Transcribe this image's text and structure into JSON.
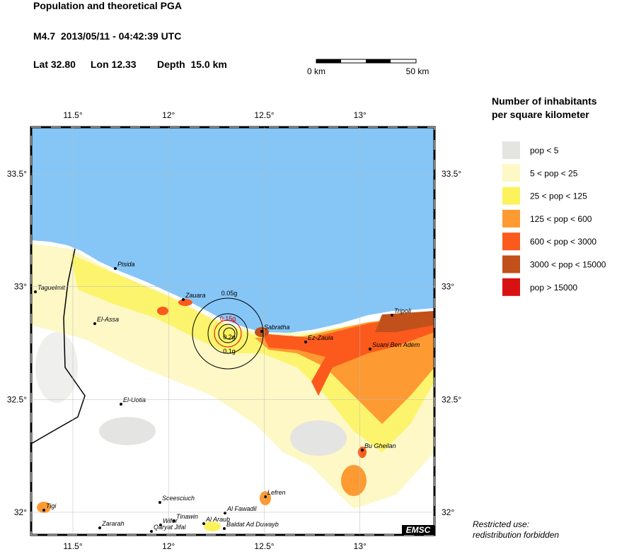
{
  "header": {
    "title": "Population and theoretical PGA",
    "event": "M4.7  2013/05/11 - 04:42:39 UTC",
    "lat": "Lat 32.80",
    "lon": "Lon 12.33",
    "depth": "Depth  15.0 km"
  },
  "scale": {
    "start": "0 km",
    "end": "50 km"
  },
  "map": {
    "lon_ticks": [
      {
        "value": 11.5,
        "label": "11.5°"
      },
      {
        "value": 12,
        "label": "12°"
      },
      {
        "value": 12.5,
        "label": "12.5°"
      },
      {
        "value": 13,
        "label": "13°"
      }
    ],
    "lat_ticks": [
      {
        "value": 33.5,
        "label": "33.5°"
      },
      {
        "value": 33,
        "label": "33°"
      },
      {
        "value": 32.5,
        "label": "32.5°"
      },
      {
        "value": 32,
        "label": "32°"
      }
    ],
    "cities": [
      "Pisida",
      "Taguelmit",
      "El-Assa",
      "Zauara",
      "Sabratha",
      "Ez-Zauia",
      "Tripoli",
      "Suani Ben Adem",
      "El-Uotia",
      "Bu Gheilan",
      "Lefren",
      "Al Fawadil",
      "Sceesciuch",
      "Tigi",
      "Zararah",
      "Wifer",
      "Tinawin",
      "Qaryat Jifal",
      "Al Araub",
      "Baldat Ad Duwayb"
    ],
    "pga_labels": [
      "0.05g",
      "0.15g",
      "0.2g",
      "0.1g"
    ],
    "badge": "EMSC"
  },
  "legend": {
    "title": [
      "Number of inhabitants",
      "per square kilometer"
    ],
    "items": [
      {
        "label": "pop < 5",
        "color": "#e4e4e2"
      },
      {
        "label": "5 < pop < 25",
        "color": "#fdf8c6"
      },
      {
        "label": "25 < pop < 125",
        "color": "#fcf35c"
      },
      {
        "label": "125 < pop < 600",
        "color": "#fd9a32"
      },
      {
        "label": "600 < pop < 3000",
        "color": "#fb5a1c"
      },
      {
        "label": "3000 < pop < 15000",
        "color": "#c2501a"
      },
      {
        "label": "pop > 15000",
        "color": "#d81212"
      }
    ]
  },
  "notes": [
    "Restricted use:",
    "redistribution forbidden"
  ]
}
